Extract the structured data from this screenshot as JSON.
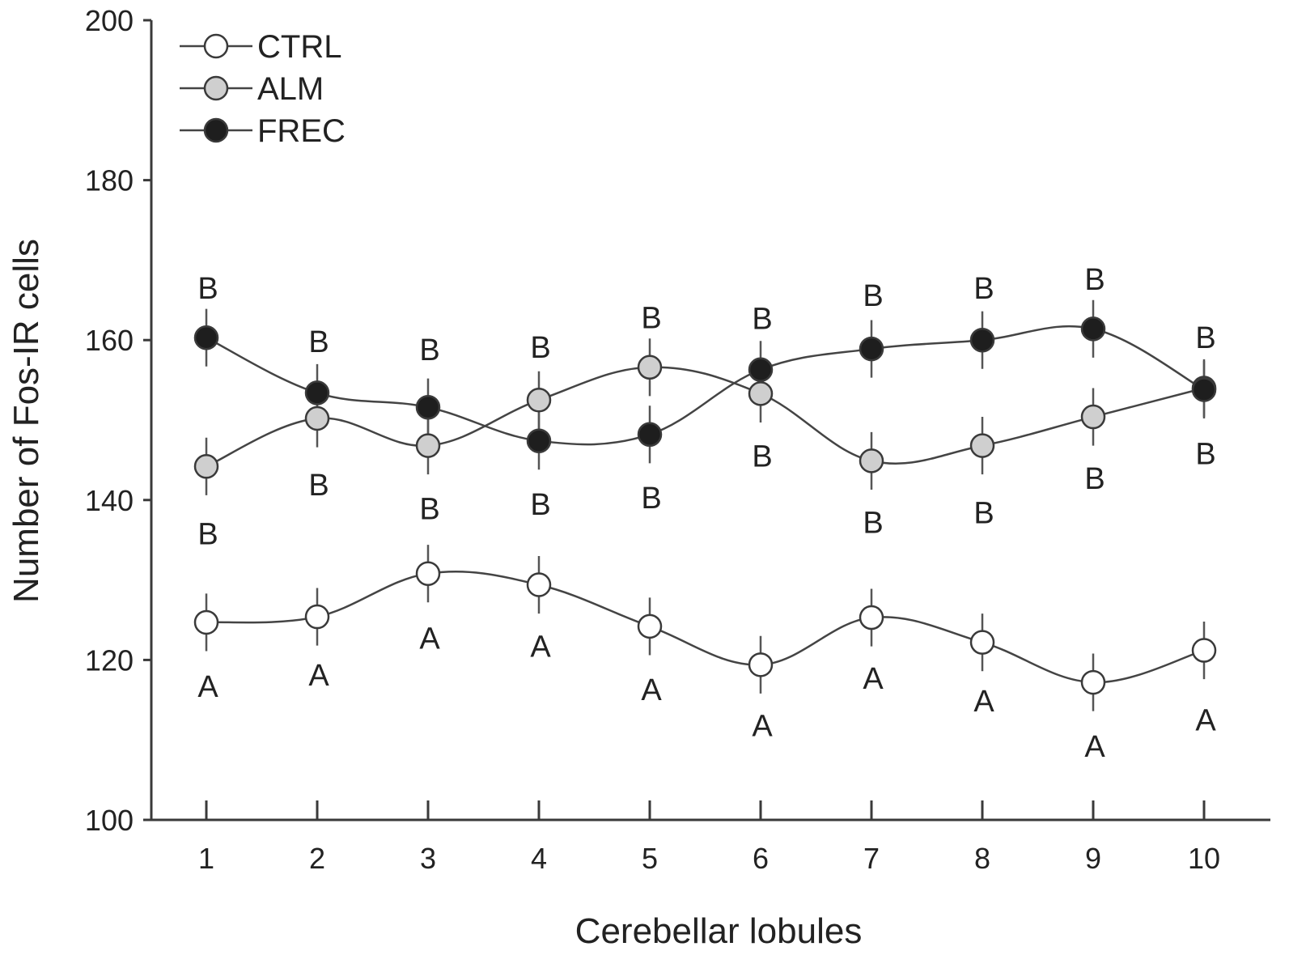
{
  "chart_data": {
    "type": "line",
    "title": "",
    "xlabel": "Cerebellar lobules",
    "ylabel": "Number of Fos-IR cells",
    "categories": [
      "1",
      "2",
      "3",
      "4",
      "5",
      "6",
      "7",
      "8",
      "9",
      "10"
    ],
    "ylim": [
      100,
      200
    ],
    "yticks": [
      "100",
      "120",
      "140",
      "160",
      "180",
      "200"
    ],
    "grid": false,
    "legend_position": "top-left",
    "series": [
      {
        "name": "CTRL",
        "marker_fill": "#ffffff",
        "values": [
          124.7,
          125.4,
          130.8,
          129.4,
          124.2,
          119.4,
          125.3,
          122.2,
          117.2,
          121.2
        ],
        "error": [
          3.6,
          3.6,
          3.6,
          3.6,
          3.6,
          3.6,
          3.6,
          3.6,
          3.6,
          3.6
        ],
        "sig_labels": [
          "A",
          "A",
          "A",
          "A",
          "A",
          "A",
          "A",
          "A",
          "A",
          "A"
        ],
        "sig_values": [
          116.8,
          118.2,
          122.8,
          121.8,
          116.4,
          111.9,
          117.8,
          115.0,
          109.3,
          112.6
        ]
      },
      {
        "name": "ALM",
        "marker_fill": "#cfcfcf",
        "values": [
          144.2,
          150.2,
          146.8,
          152.5,
          156.6,
          153.3,
          144.9,
          146.8,
          150.4,
          154.0
        ],
        "error": [
          3.6,
          3.6,
          3.6,
          3.6,
          3.6,
          3.6,
          3.6,
          3.6,
          3.6,
          3.6
        ],
        "sig_labels": [
          "B",
          "B",
          "B",
          "B",
          "B",
          "B",
          "B",
          "B",
          "B",
          "B"
        ],
        "sig_values": [
          135.9,
          142.0,
          139.0,
          139.6,
          140.4,
          145.6,
          137.3,
          138.5,
          142.8,
          145.9
        ]
      },
      {
        "name": "FREC",
        "marker_fill": "#1e1e1e",
        "values": [
          160.3,
          153.4,
          151.6,
          147.4,
          148.2,
          156.3,
          158.9,
          160.0,
          161.4,
          153.8
        ],
        "error": [
          3.6,
          3.6,
          3.6,
          3.6,
          3.6,
          3.6,
          3.6,
          3.6,
          3.6,
          3.6
        ],
        "sig_labels": [
          "B",
          "B",
          "B",
          "B",
          "B",
          "B",
          "B",
          "B",
          "B",
          "B"
        ],
        "sig_values": [
          166.6,
          159.9,
          158.9,
          159.2,
          162.9,
          162.8,
          165.7,
          166.6,
          167.7,
          160.4
        ]
      }
    ]
  }
}
